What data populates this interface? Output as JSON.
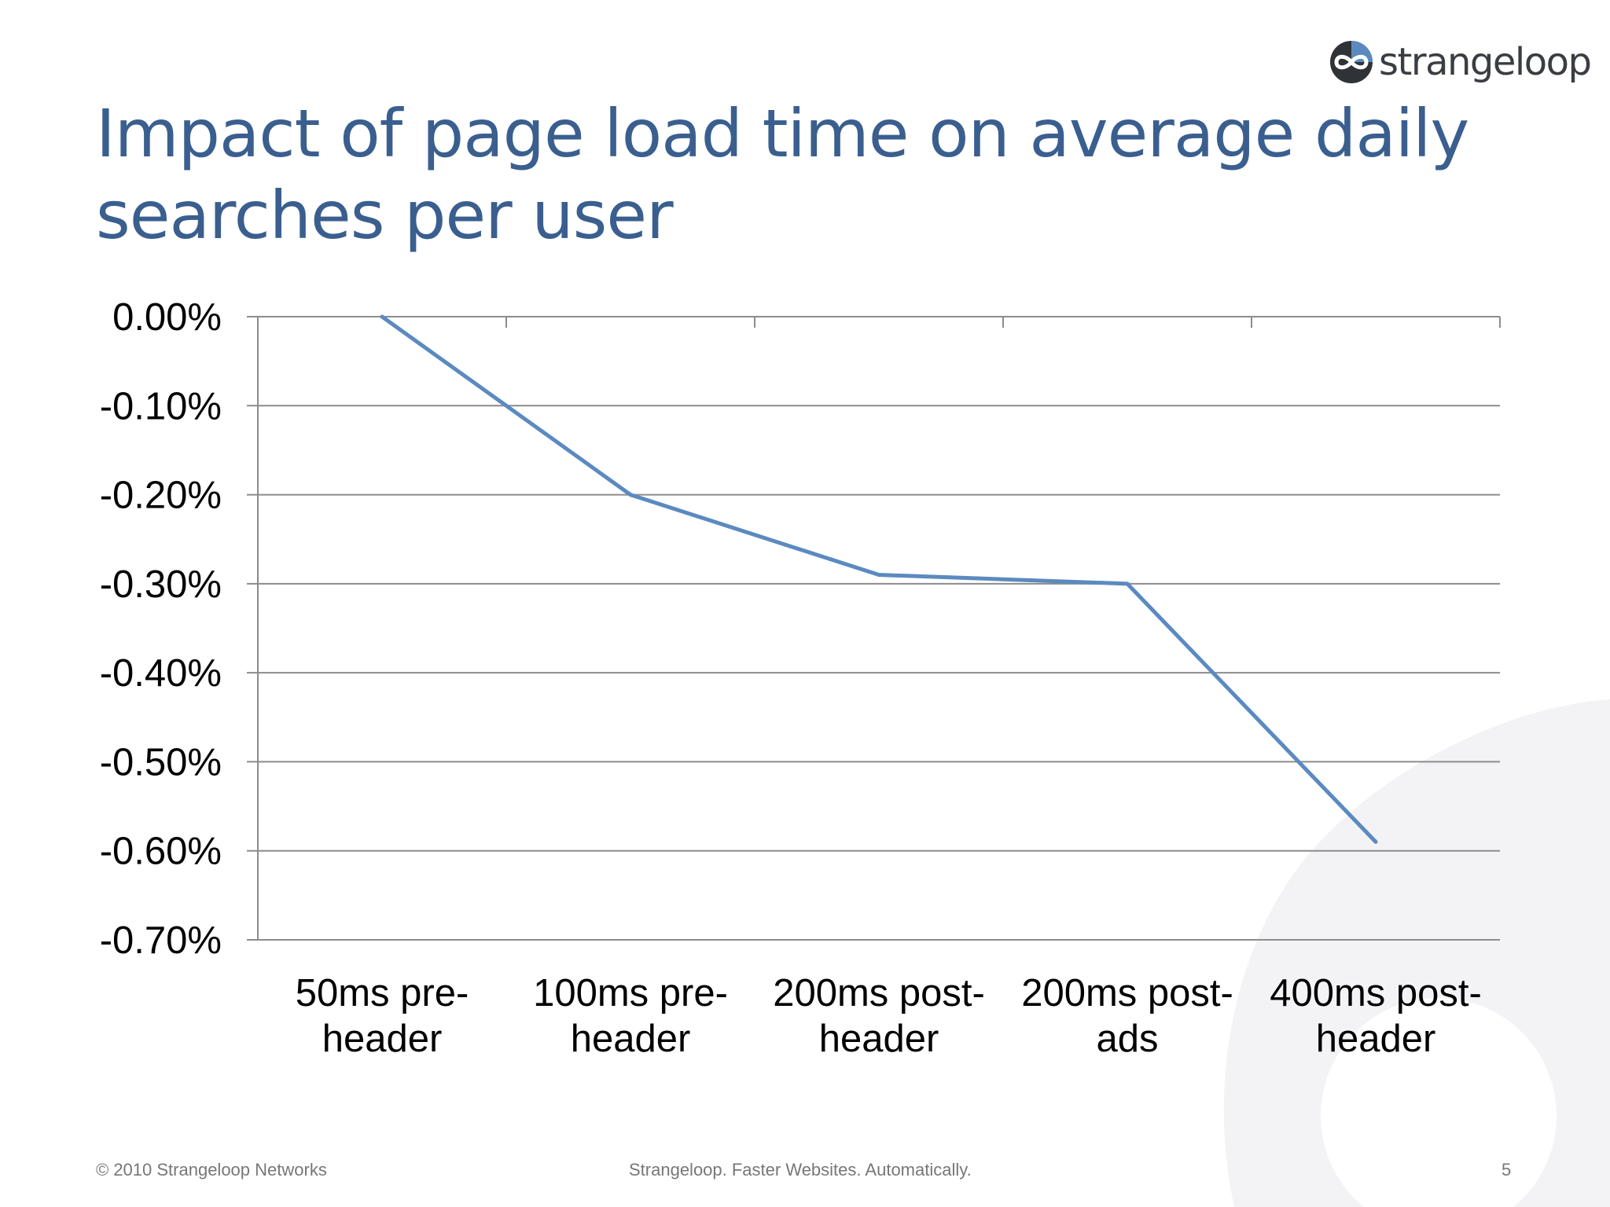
{
  "brand": {
    "logo_text": "strangeloop",
    "accent": "#5b8ac0",
    "dark": "#2f3338"
  },
  "slide": {
    "title": "Impact of page load time on average daily searches per user",
    "title_color": "#3a5f8f"
  },
  "footer": {
    "copyright": "© 2010 Strangeloop Networks",
    "tagline": "Strangeloop. Faster Websites. Automatically.",
    "page_number": "5"
  },
  "chart_data": {
    "type": "line",
    "categories": [
      [
        "50ms pre-",
        "header"
      ],
      [
        "100ms pre-",
        "header"
      ],
      [
        "200ms post-",
        "header"
      ],
      [
        "200ms post-",
        "ads"
      ],
      [
        "400ms post-",
        "header"
      ]
    ],
    "series": [
      {
        "values": [
          0.0,
          -0.2,
          -0.29,
          -0.3,
          -0.59
        ],
        "color": "#5b8ac0"
      }
    ],
    "yticks": [
      "0.00%",
      "-0.10%",
      "-0.20%",
      "-0.30%",
      "-0.40%",
      "-0.50%",
      "-0.60%",
      "-0.70%"
    ],
    "ylim": [
      -0.7,
      0
    ],
    "ytick_step": 0.1,
    "grid": true,
    "title": "",
    "xlabel": "",
    "ylabel": ""
  }
}
